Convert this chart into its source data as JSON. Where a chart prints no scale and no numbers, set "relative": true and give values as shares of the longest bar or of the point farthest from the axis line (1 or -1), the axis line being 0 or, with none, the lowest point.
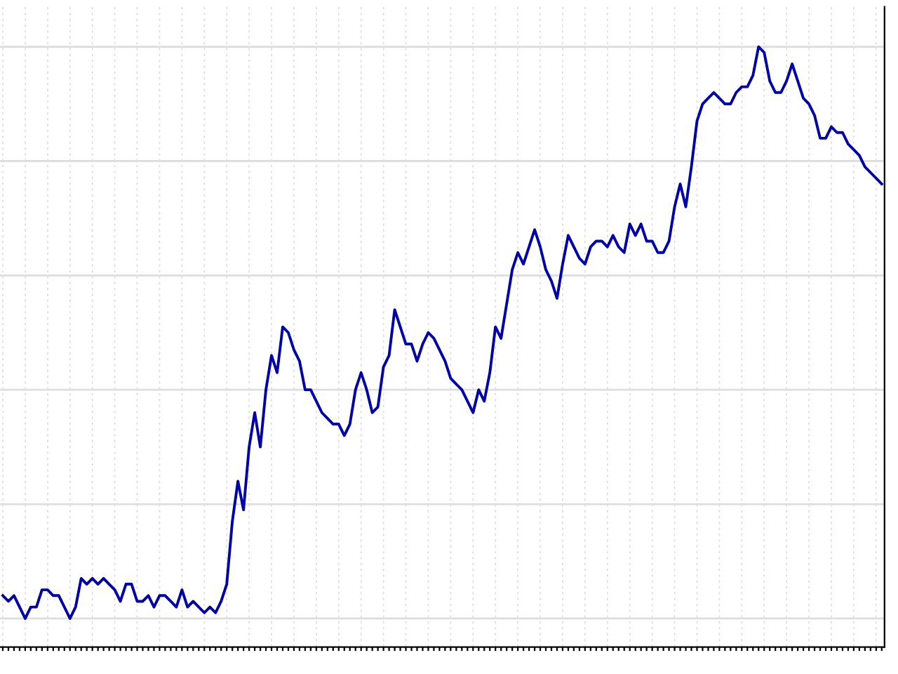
{
  "chart_data": {
    "type": "line",
    "relative": true,
    "grid": true,
    "line_style": "solid",
    "categories": [
      null,
      null,
      null,
      null,
      null,
      null,
      null,
      null,
      null,
      null,
      null,
      null,
      null,
      null,
      null,
      null,
      null,
      null,
      null,
      null,
      null,
      null,
      null,
      null,
      null,
      null,
      null,
      null,
      null,
      null,
      null,
      null,
      null,
      null,
      null,
      null,
      null,
      null,
      null,
      null,
      null,
      null,
      null,
      null,
      null,
      null,
      null,
      null,
      null,
      null,
      null,
      null,
      null,
      null,
      null,
      null,
      null,
      null,
      null,
      null,
      null,
      null,
      null,
      null,
      null,
      null,
      null,
      null,
      null,
      null,
      null,
      null,
      null,
      null,
      null,
      null,
      null,
      null,
      null,
      null,
      null,
      null,
      null,
      null,
      null,
      null,
      null,
      null,
      null,
      null,
      null,
      null,
      null,
      null,
      null,
      null,
      null,
      null,
      null,
      null,
      null,
      null,
      null,
      null,
      null,
      null,
      null,
      null,
      null,
      null,
      null,
      null,
      null,
      null,
      null,
      null,
      null,
      null,
      null,
      null,
      null,
      null,
      null,
      null,
      null,
      null,
      null,
      null,
      null,
      null,
      null,
      null,
      null,
      null,
      null,
      null,
      null,
      null,
      null,
      null,
      null,
      null,
      null,
      null,
      null,
      null,
      null,
      null,
      null,
      null,
      null,
      null,
      null,
      null,
      null,
      null,
      null,
      null
    ],
    "series": [
      {
        "color": "#0000aa",
        "values": [
          0.04,
          0.03,
          0.04,
          0.02,
          0.0,
          0.02,
          0.02,
          0.05,
          0.05,
          0.04,
          0.04,
          0.02,
          0,
          0.02,
          0.07,
          0.06,
          0.07,
          0.06,
          0.07,
          0.06,
          0.05,
          0.03,
          0.06,
          0.06,
          0.03,
          0.03,
          0.04,
          0.02,
          0.04,
          0.04,
          0.03,
          0.02,
          0.05,
          0.02,
          0.03,
          0.02,
          0.01,
          0.02,
          0.01,
          0.03,
          0.06,
          0.17,
          0.24,
          0.19,
          0.3,
          0.36,
          0.3,
          0.4,
          0.46,
          0.43,
          0.51,
          0.5,
          0.47,
          0.45,
          0.4,
          0.4,
          0.38,
          0.36,
          0.35,
          0.34,
          0.34,
          0.32,
          0.34,
          0.4,
          0.43,
          0.4,
          0.36,
          0.37,
          0.44,
          0.46,
          0.54,
          0.51,
          0.48,
          0.48,
          0.45,
          0.48,
          0.5,
          0.49,
          0.47,
          0.45,
          0.42,
          0.41,
          0.4,
          0.38,
          0.36,
          0.4,
          0.38,
          0.43,
          0.51,
          0.49,
          0.55,
          0.61,
          0.64,
          0.62,
          0.65,
          0.68,
          0.65,
          0.61,
          0.59,
          0.56,
          0.62,
          0.67,
          0.65,
          0.63,
          0.62,
          0.65,
          0.66,
          0.66,
          0.65,
          0.67,
          0.65,
          0.64,
          0.69,
          0.67,
          0.69,
          0.66,
          0.66,
          0.64,
          0.64,
          0.66,
          0.72,
          0.76,
          0.72,
          0.79,
          0.87,
          0.9,
          0.91,
          0.92,
          0.91,
          0.9,
          0.9,
          0.92,
          0.93,
          0.93,
          0.95,
          1,
          0.99,
          0.94,
          0.92,
          0.92,
          0.94,
          0.97,
          0.94,
          0.91,
          0.9,
          0.88,
          0.84,
          0.84,
          0.86,
          0.85,
          0.85,
          0.83,
          0.82,
          0.81,
          0.79,
          0.78,
          0.77,
          0.76
        ]
      }
    ]
  }
}
